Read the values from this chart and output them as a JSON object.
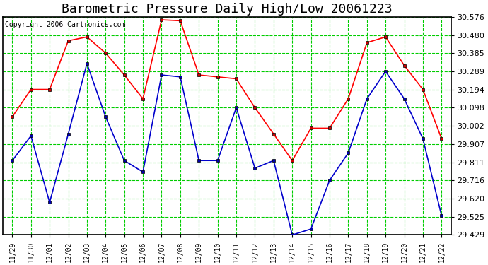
{
  "title": "Barometric Pressure Daily High/Low 20061223",
  "copyright": "Copyright 2006 Cartronics.com",
  "dates": [
    "11/29",
    "11/30",
    "12/01",
    "12/02",
    "12/03",
    "12/04",
    "12/05",
    "12/06",
    "12/07",
    "12/08",
    "12/09",
    "12/10",
    "12/11",
    "12/12",
    "12/13",
    "12/14",
    "12/15",
    "12/16",
    "12/17",
    "12/18",
    "12/19",
    "12/20",
    "12/21",
    "12/22"
  ],
  "high": [
    30.05,
    30.194,
    30.194,
    30.45,
    30.47,
    30.385,
    30.27,
    30.145,
    30.56,
    30.555,
    30.27,
    30.26,
    30.25,
    30.098,
    29.96,
    29.82,
    29.99,
    29.99,
    30.145,
    30.44,
    30.47,
    30.32,
    30.194,
    29.935
  ],
  "low": [
    29.82,
    29.95,
    29.6,
    29.96,
    30.33,
    30.05,
    29.82,
    29.76,
    30.27,
    30.26,
    29.82,
    29.82,
    30.098,
    29.78,
    29.82,
    29.429,
    29.46,
    29.716,
    29.86,
    30.145,
    30.289,
    30.145,
    29.935,
    29.53
  ],
  "high_color": "#ff0000",
  "low_color": "#0000cc",
  "marker_high_color": "#cc0000",
  "marker_low_color": "#0000aa",
  "marker_edge_color": "#000000",
  "bg_color": "#ffffff",
  "plot_bg_color": "#ffffff",
  "grid_color": "#00cc00",
  "title_fontsize": 13,
  "copyright_fontsize": 7,
  "ylim_min": 29.429,
  "ylim_max": 30.576,
  "yticks": [
    29.429,
    29.525,
    29.62,
    29.716,
    29.811,
    29.907,
    30.002,
    30.098,
    30.194,
    30.289,
    30.385,
    30.48,
    30.576
  ]
}
